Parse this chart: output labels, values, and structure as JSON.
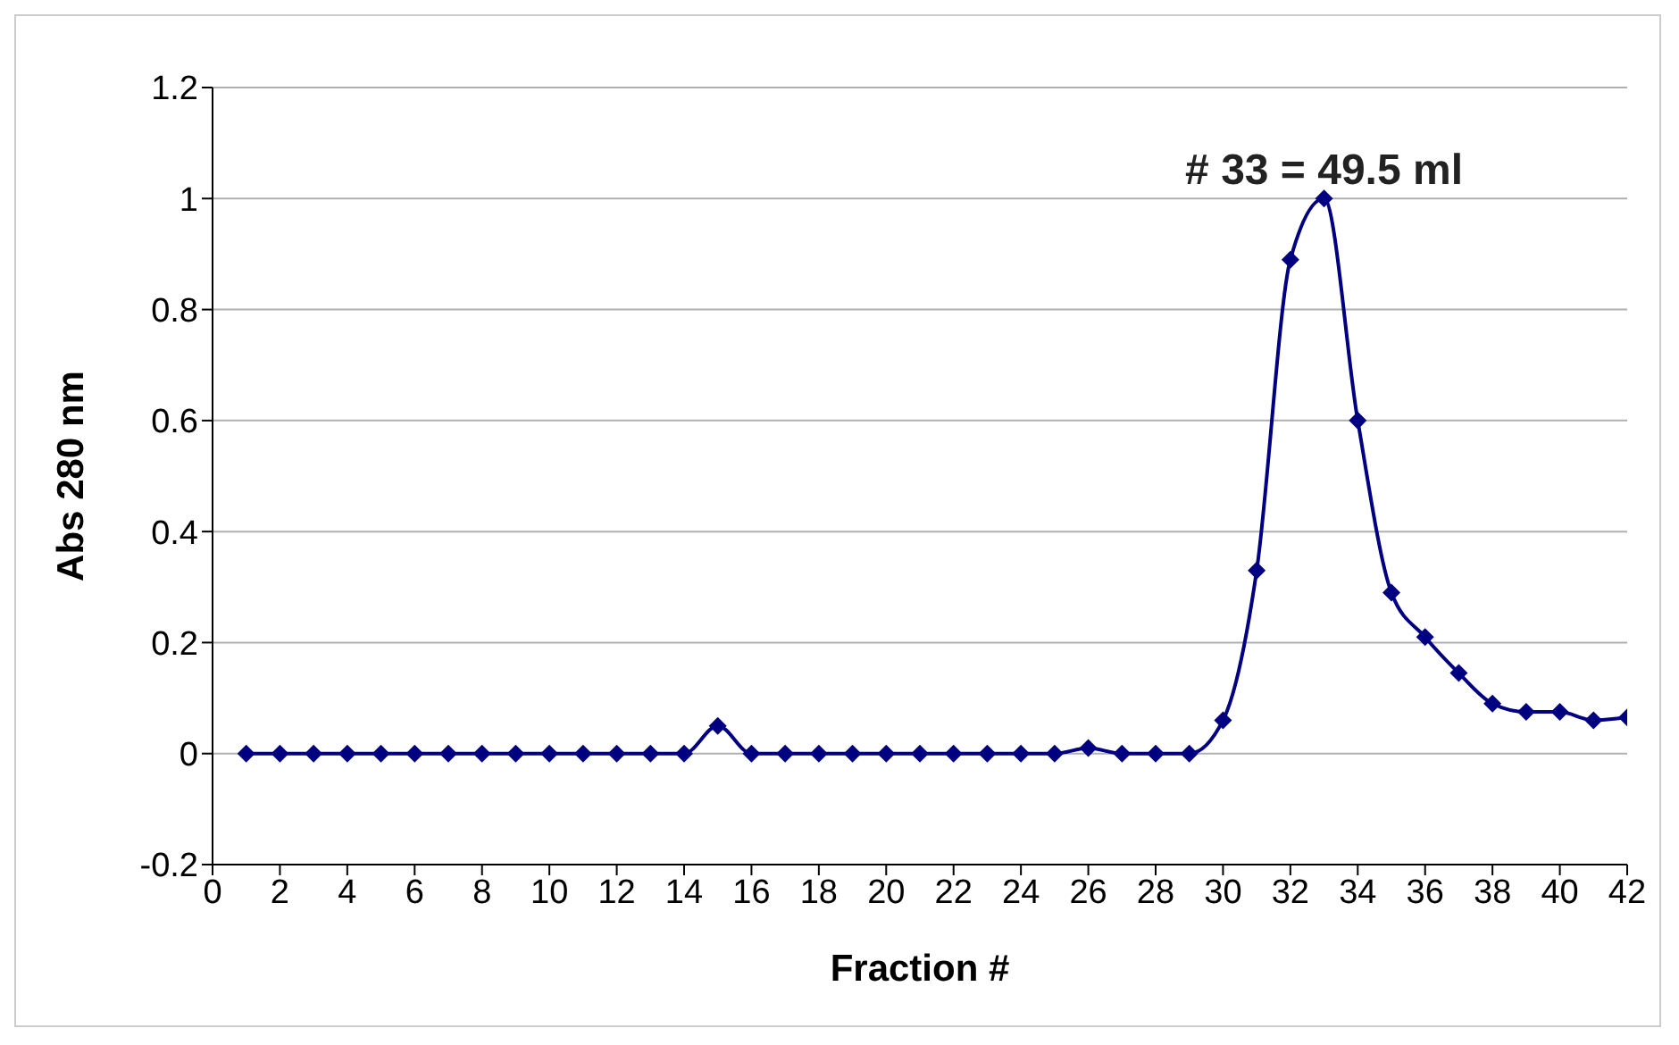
{
  "chart_data": {
    "type": "line",
    "xlabel": "Fraction #",
    "ylabel": "Abs 280 nm",
    "x": [
      1,
      2,
      3,
      4,
      5,
      6,
      7,
      8,
      9,
      10,
      11,
      12,
      13,
      14,
      15,
      16,
      17,
      18,
      19,
      20,
      21,
      22,
      23,
      24,
      25,
      26,
      27,
      28,
      29,
      30,
      31,
      32,
      33,
      34,
      35,
      36,
      37,
      38,
      39,
      40,
      41,
      42
    ],
    "series": [
      {
        "color": "#000080",
        "values": [
          0,
          0,
          0,
          0,
          0,
          0,
          0,
          0,
          0,
          0,
          0,
          0,
          0,
          0,
          0.05,
          0,
          0,
          0,
          0,
          0,
          0,
          0,
          0,
          0,
          0,
          0.01,
          0,
          0,
          0,
          0.06,
          0.33,
          0.89,
          1.0,
          0.6,
          0.29,
          0.21,
          0.145,
          0.09,
          0.075,
          0.075,
          0.06,
          0.065
        ]
      }
    ],
    "xlim": [
      0,
      42
    ],
    "xticks": [
      0,
      2,
      4,
      6,
      8,
      10,
      12,
      14,
      16,
      18,
      20,
      22,
      24,
      26,
      28,
      30,
      32,
      34,
      36,
      38,
      40,
      42
    ],
    "ylim": [
      -0.2,
      1.2
    ],
    "yticks": [
      -0.2,
      0,
      0.2,
      0.4,
      0.6,
      0.8,
      1,
      1.2
    ],
    "grid": "y",
    "marker": "diamond",
    "line_style": "solid",
    "annotations": [
      {
        "text": "# 33 = 49.5 ml",
        "x": 33,
        "y": 1.0
      }
    ]
  }
}
